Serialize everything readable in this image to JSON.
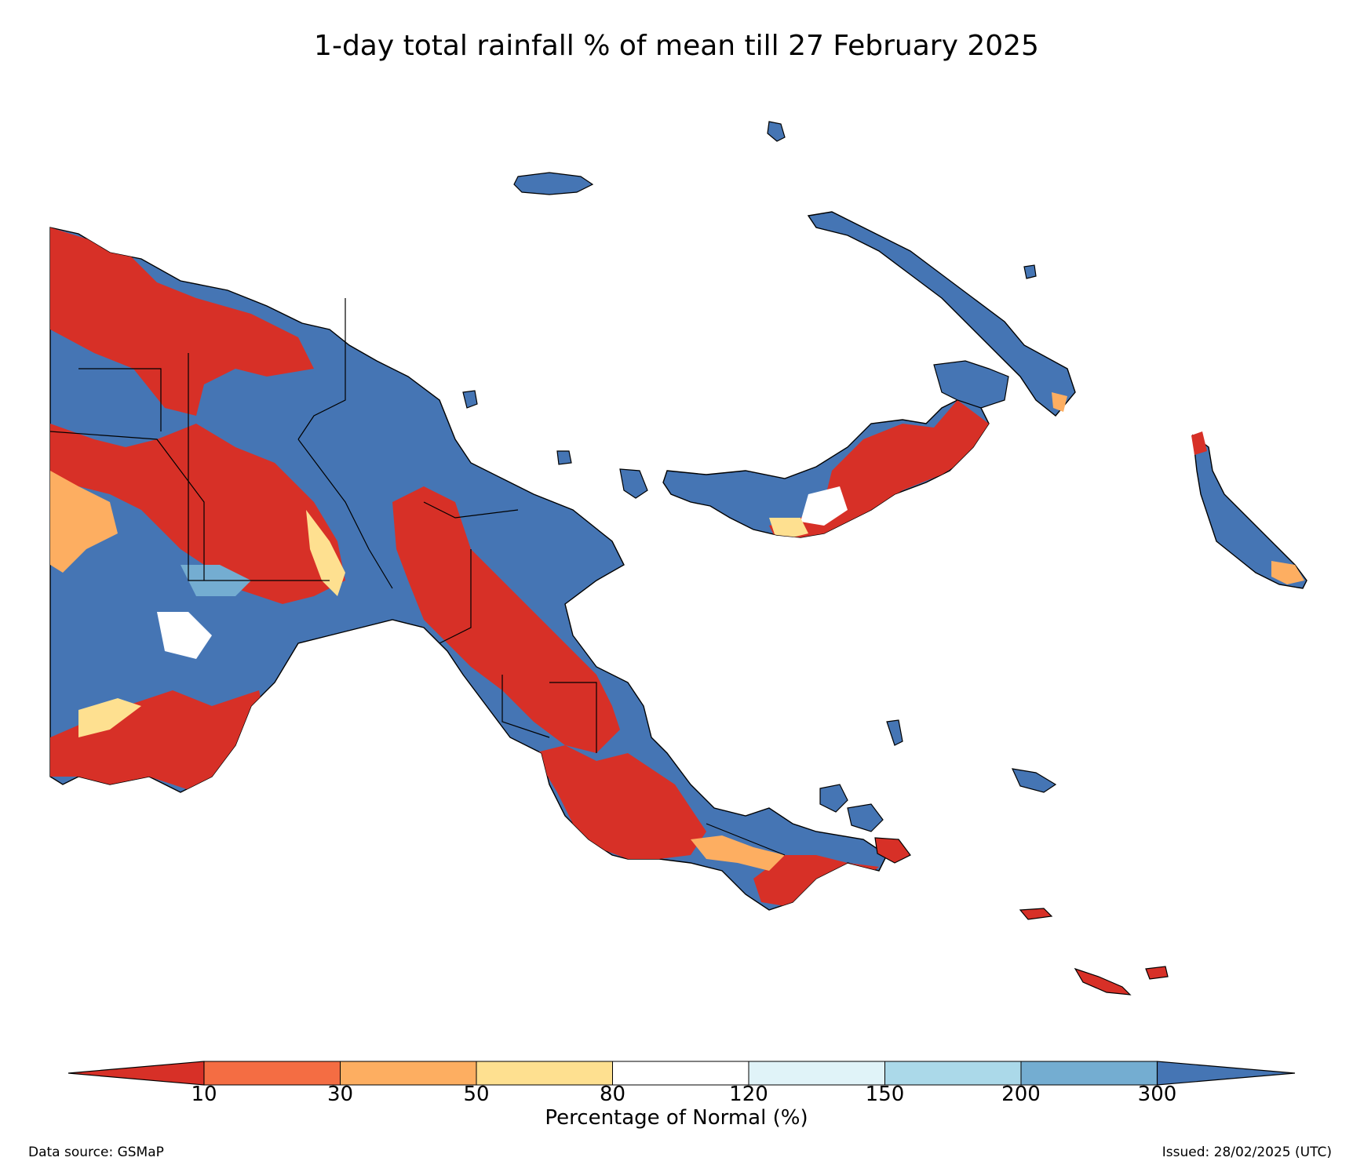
{
  "title": "1-day total rainfall % of mean till 27 February 2025",
  "colorbar": {
    "title": "Percentage of Normal (%)",
    "ticks": [
      "10",
      "30",
      "50",
      "80",
      "120",
      "150",
      "200",
      "300"
    ],
    "colors": [
      "#d73027",
      "#f46d43",
      "#fdae61",
      "#fee090",
      "#ffffff",
      "#e0f3f8",
      "#abd9e9",
      "#74add1",
      "#4575b4"
    ]
  },
  "footer": {
    "source": "Data source: GSMaP",
    "issued": "Issued: 28/02/2025 (UTC)"
  },
  "palette": {
    "very_low": "#d73027",
    "low": "#f46d43",
    "below": "#fdae61",
    "slightly_below": "#fee090",
    "normal": "#ffffff",
    "slightly_above": "#e0f3f8",
    "above": "#abd9e9",
    "high": "#74add1",
    "very_high": "#4575b4",
    "border": "#000000"
  }
}
